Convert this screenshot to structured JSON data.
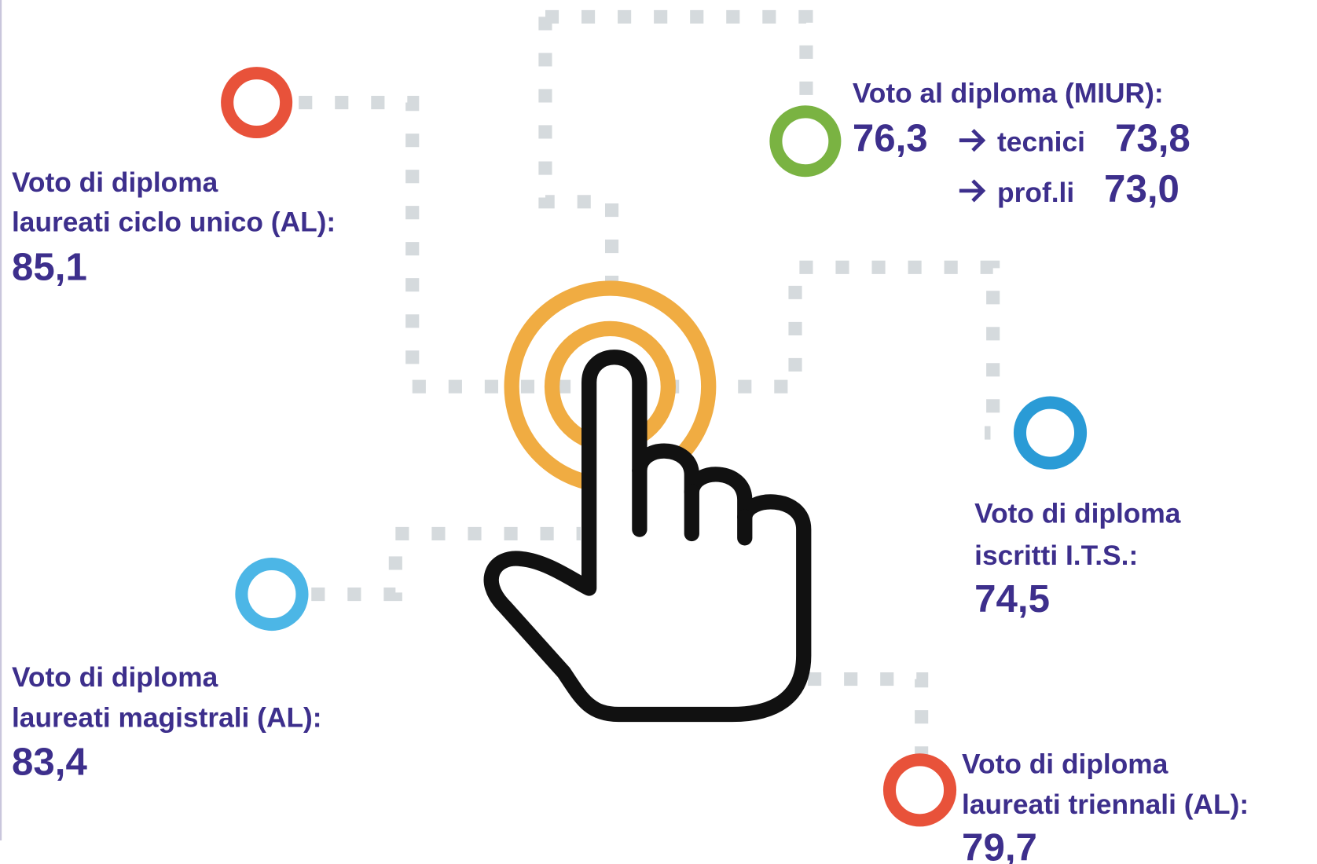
{
  "items": [
    {
      "label": [
        "Voto di diploma",
        "laureati ciclo unico (AL):"
      ],
      "value": "85,1"
    },
    {
      "label": [
        "Voto di diploma",
        "laureati magistrali (AL):"
      ],
      "value": "83,4"
    },
    {
      "label": [
        "Voto di diploma",
        "iscritti I.T.S.:"
      ],
      "value": "74,5"
    },
    {
      "label": [
        "Voto di diploma",
        "laureati triennali (AL):"
      ],
      "value": "79,7"
    }
  ],
  "miur": {
    "label": "Voto al diploma (MIUR):",
    "value": "76,3",
    "breakdown": [
      {
        "label": "tecnici",
        "value": "73,8"
      },
      {
        "label": "prof.li",
        "value": "73,0"
      }
    ]
  }
}
